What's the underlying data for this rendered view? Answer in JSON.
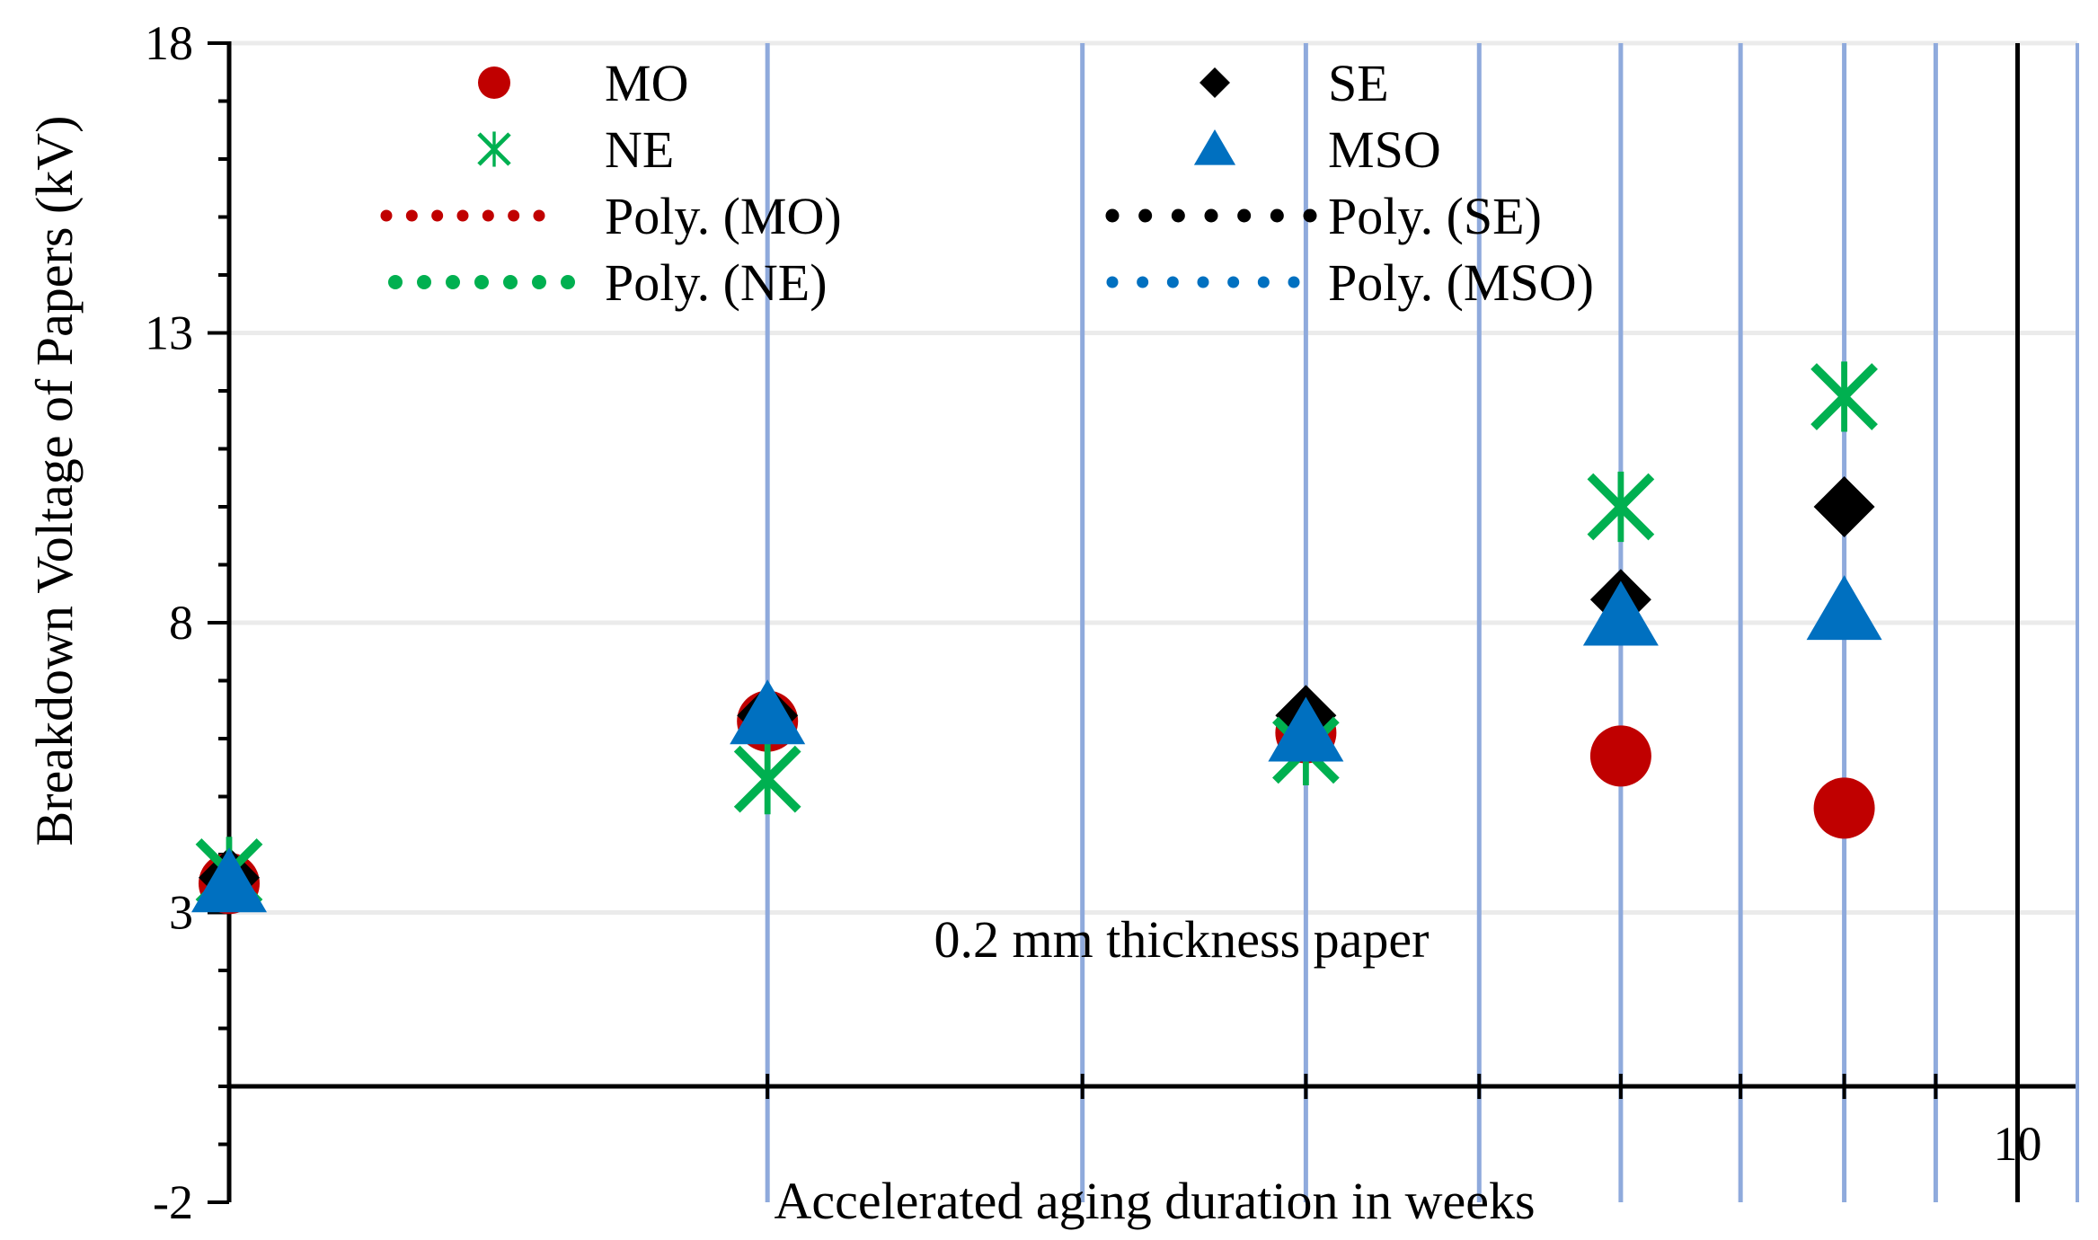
{
  "chart_data": {
    "type": "scatter",
    "title": "",
    "annotation": "0.2 mm thickness paper",
    "xlabel": "Accelerated aging duration in weeks",
    "ylabel": "Breakdown Voltage of Papers (kV)",
    "x_scale": "log",
    "xlim": [
      1,
      10.8
    ],
    "ylim": [
      -2,
      18
    ],
    "y_ticks": [
      -2,
      3,
      8,
      13,
      18
    ],
    "y_tick_labels": [
      "-2",
      "3",
      "8",
      "13",
      "18"
    ],
    "x_tick_labels": [
      {
        "value": 10,
        "label": "10"
      }
    ],
    "x_minor_ticks": [
      2,
      3,
      4,
      5,
      6,
      7,
      8,
      9
    ],
    "x_gridlines": [
      2,
      3,
      4,
      5,
      6,
      7,
      8,
      9
    ],
    "y_gridlines": [
      3,
      8,
      13,
      18
    ],
    "legend_position": "top",
    "colors": {
      "MO": "#c00000",
      "SE": "#000000",
      "NE": "#00b050",
      "MSO": "#0070c0",
      "grid_vertical": "#8faadc",
      "grid_horizontal": "#ebebeb"
    },
    "series": [
      {
        "name": "MO",
        "marker": "circle",
        "x": [
          1,
          2,
          4,
          6,
          8
        ],
        "y": [
          3.5,
          6.3,
          6.1,
          5.7,
          4.8
        ]
      },
      {
        "name": "SE",
        "marker": "diamond",
        "x": [
          1,
          2,
          4,
          6,
          8
        ],
        "y": [
          3.6,
          6.4,
          6.4,
          8.4,
          10.0
        ]
      },
      {
        "name": "NE",
        "marker": "x",
        "x": [
          1,
          2,
          4,
          6,
          8
        ],
        "y": [
          3.7,
          5.3,
          5.8,
          10.0,
          11.9
        ]
      },
      {
        "name": "MSO",
        "marker": "triangle",
        "x": [
          1,
          2,
          4,
          6,
          8
        ],
        "y": [
          3.5,
          6.4,
          6.1,
          8.1,
          8.2
        ]
      }
    ],
    "trendlines": [
      {
        "name": "Poly. (MO)",
        "series": "MO",
        "order": 3
      },
      {
        "name": "Poly. (SE)",
        "series": "SE",
        "order": 3
      },
      {
        "name": "Poly. (NE)",
        "series": "NE",
        "order": 3
      },
      {
        "name": "Poly. (MSO)",
        "series": "MSO",
        "order": 3
      }
    ],
    "legend": [
      "MO",
      "SE",
      "NE",
      "MSO",
      "Poly. (MO)",
      "Poly. (SE)",
      "Poly. (NE)",
      "Poly. (MSO)"
    ]
  }
}
